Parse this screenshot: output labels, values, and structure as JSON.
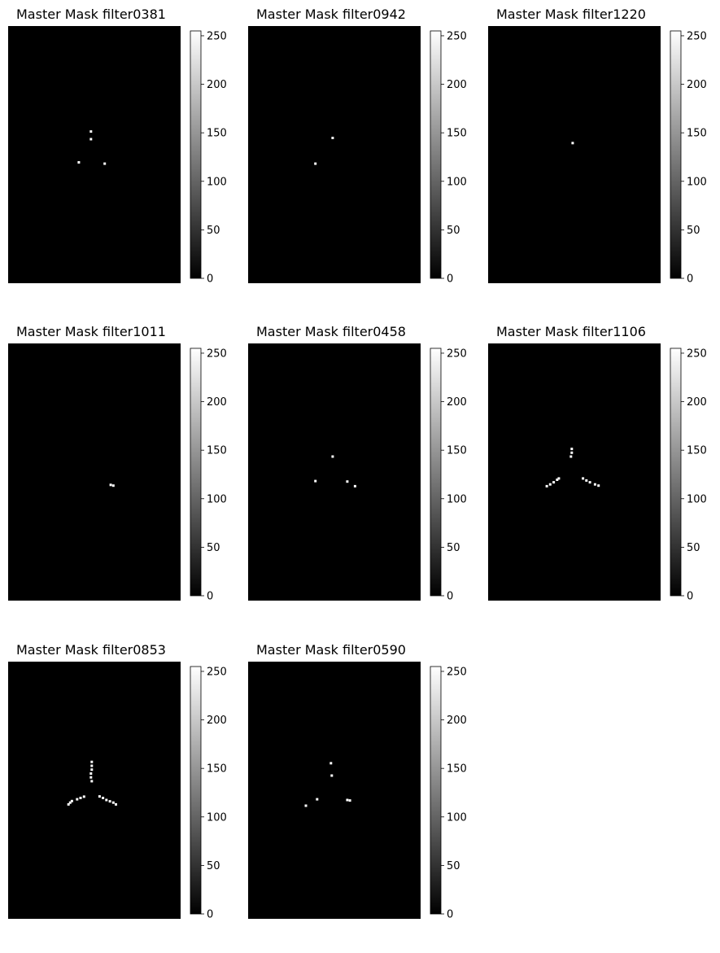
{
  "chart_data": [
    {
      "type": "heatmap",
      "title": "Master Mask filter0381",
      "colormap": "gray",
      "colorbar_range": [
        0,
        255
      ],
      "colorbar_ticks": [
        "0",
        "50",
        "100",
        "150",
        "200",
        "250"
      ],
      "axes_visible": false,
      "background_value": 0,
      "mask_pixels": [
        {
          "x": 0.48,
          "y": 0.41
        },
        {
          "x": 0.48,
          "y": 0.44
        },
        {
          "x": 0.41,
          "y": 0.53
        },
        {
          "x": 0.56,
          "y": 0.535
        }
      ]
    },
    {
      "type": "heatmap",
      "title": "Master Mask filter0942",
      "colormap": "gray",
      "colorbar_range": [
        0,
        255
      ],
      "colorbar_ticks": [
        "0",
        "50",
        "100",
        "150",
        "200",
        "250"
      ],
      "axes_visible": false,
      "background_value": 0,
      "mask_pixels": [
        {
          "x": 0.49,
          "y": 0.435
        },
        {
          "x": 0.39,
          "y": 0.535
        }
      ]
    },
    {
      "type": "heatmap",
      "title": "Master Mask filter1220",
      "colormap": "gray",
      "colorbar_range": [
        0,
        255
      ],
      "colorbar_ticks": [
        "0",
        "50",
        "100",
        "150",
        "200",
        "250"
      ],
      "axes_visible": false,
      "background_value": 0,
      "mask_pixels": [
        {
          "x": 0.49,
          "y": 0.455
        }
      ]
    },
    {
      "type": "heatmap",
      "title": "Master Mask filter1011",
      "colormap": "gray",
      "colorbar_range": [
        0,
        255
      ],
      "colorbar_ticks": [
        "0",
        "50",
        "100",
        "150",
        "200",
        "250"
      ],
      "axes_visible": false,
      "background_value": 0,
      "mask_pixels": [
        {
          "x": 0.595,
          "y": 0.55
        },
        {
          "x": 0.61,
          "y": 0.553
        }
      ]
    },
    {
      "type": "heatmap",
      "title": "Master Mask filter0458",
      "colormap": "gray",
      "colorbar_range": [
        0,
        255
      ],
      "colorbar_ticks": [
        "0",
        "50",
        "100",
        "150",
        "200",
        "250"
      ],
      "axes_visible": false,
      "background_value": 0,
      "mask_pixels": [
        {
          "x": 0.49,
          "y": 0.44
        },
        {
          "x": 0.39,
          "y": 0.535
        },
        {
          "x": 0.575,
          "y": 0.537
        },
        {
          "x": 0.62,
          "y": 0.555
        }
      ]
    },
    {
      "type": "heatmap",
      "title": "Master Mask filter1106",
      "colormap": "gray",
      "colorbar_range": [
        0,
        255
      ],
      "colorbar_ticks": [
        "0",
        "50",
        "100",
        "150",
        "200",
        "250"
      ],
      "axes_visible": false,
      "background_value": 0,
      "mask_pixels": [
        {
          "x": 0.485,
          "y": 0.41
        },
        {
          "x": 0.485,
          "y": 0.425
        },
        {
          "x": 0.48,
          "y": 0.44
        },
        {
          "x": 0.34,
          "y": 0.555
        },
        {
          "x": 0.36,
          "y": 0.548
        },
        {
          "x": 0.38,
          "y": 0.54
        },
        {
          "x": 0.4,
          "y": 0.53
        },
        {
          "x": 0.41,
          "y": 0.525
        },
        {
          "x": 0.55,
          "y": 0.525
        },
        {
          "x": 0.57,
          "y": 0.533
        },
        {
          "x": 0.59,
          "y": 0.54
        },
        {
          "x": 0.62,
          "y": 0.548
        },
        {
          "x": 0.64,
          "y": 0.553
        }
      ]
    },
    {
      "type": "heatmap",
      "title": "Master Mask filter0853",
      "colormap": "gray",
      "colorbar_range": [
        0,
        255
      ],
      "colorbar_ticks": [
        "0",
        "50",
        "100",
        "150",
        "200",
        "250"
      ],
      "axes_visible": false,
      "background_value": 0,
      "mask_pixels": [
        {
          "x": 0.485,
          "y": 0.39
        },
        {
          "x": 0.485,
          "y": 0.405
        },
        {
          "x": 0.485,
          "y": 0.42
        },
        {
          "x": 0.48,
          "y": 0.435
        },
        {
          "x": 0.48,
          "y": 0.45
        },
        {
          "x": 0.485,
          "y": 0.465
        },
        {
          "x": 0.35,
          "y": 0.555
        },
        {
          "x": 0.36,
          "y": 0.548
        },
        {
          "x": 0.37,
          "y": 0.542
        },
        {
          "x": 0.4,
          "y": 0.535
        },
        {
          "x": 0.42,
          "y": 0.53
        },
        {
          "x": 0.44,
          "y": 0.525
        },
        {
          "x": 0.53,
          "y": 0.524
        },
        {
          "x": 0.55,
          "y": 0.53
        },
        {
          "x": 0.57,
          "y": 0.538
        },
        {
          "x": 0.59,
          "y": 0.543
        },
        {
          "x": 0.61,
          "y": 0.548
        },
        {
          "x": 0.625,
          "y": 0.555
        }
      ]
    },
    {
      "type": "heatmap",
      "title": "Master Mask filter0590",
      "colormap": "gray",
      "colorbar_range": [
        0,
        255
      ],
      "colorbar_ticks": [
        "0",
        "50",
        "100",
        "150",
        "200",
        "250"
      ],
      "axes_visible": false,
      "background_value": 0,
      "mask_pixels": [
        {
          "x": 0.48,
          "y": 0.395
        },
        {
          "x": 0.485,
          "y": 0.443
        },
        {
          "x": 0.4,
          "y": 0.535
        },
        {
          "x": 0.335,
          "y": 0.56
        },
        {
          "x": 0.575,
          "y": 0.538
        },
        {
          "x": 0.59,
          "y": 0.54
        }
      ]
    }
  ]
}
